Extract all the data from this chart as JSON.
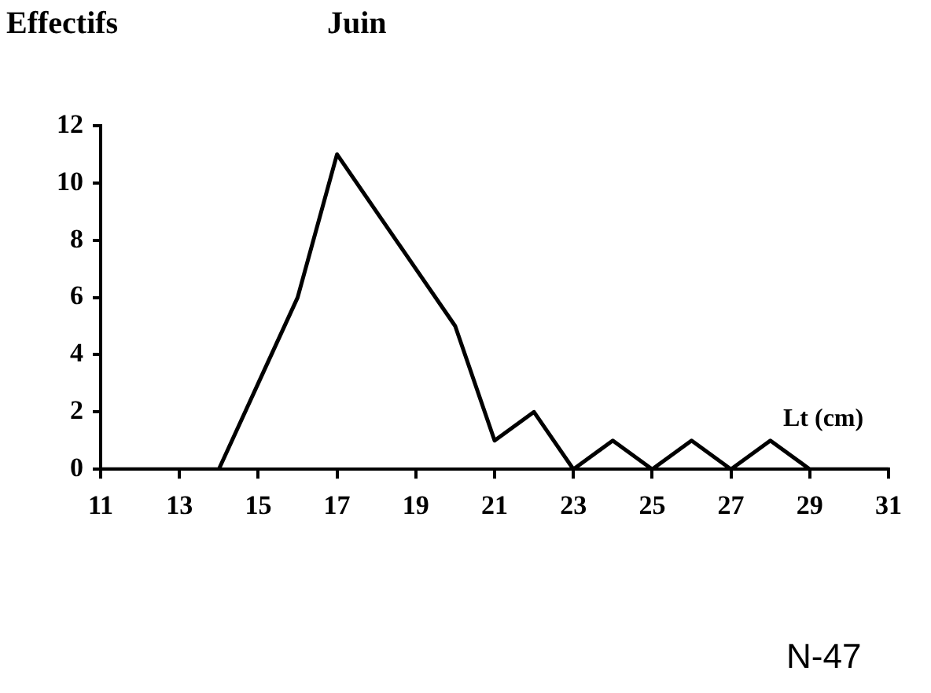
{
  "chart_data": {
    "type": "line",
    "title": "Juin",
    "ylabel": "Effectifs",
    "xlabel": "Lt (cm)",
    "categories": [
      "11",
      null,
      "13",
      null,
      "15",
      null,
      "17",
      null,
      "19",
      null,
      "21",
      null,
      "23",
      null,
      "25",
      null,
      "27",
      null,
      "29",
      null,
      "31"
    ],
    "series": [
      {
        "color": "#000000",
        "values": [
          0,
          0,
          0,
          0,
          3,
          6,
          11,
          9,
          7,
          5,
          1,
          2,
          0,
          1,
          0,
          1,
          0,
          1,
          0,
          0,
          0
        ]
      }
    ],
    "ylim": [
      0,
      12
    ],
    "yticks": [
      0,
      2,
      4,
      6,
      8,
      10,
      12
    ],
    "grid": false,
    "legend": false,
    "marker": "none",
    "line_style": "solid",
    "annotations": [
      "N-47"
    ]
  }
}
